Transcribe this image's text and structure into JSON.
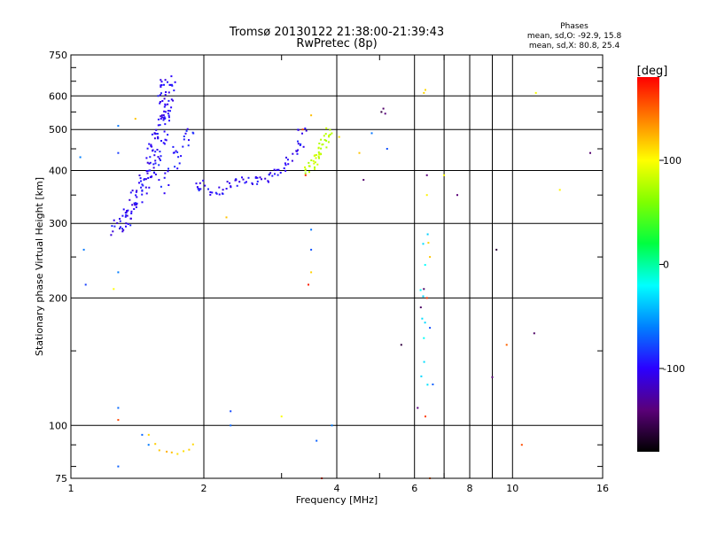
{
  "chart_data": {
    "type": "scatter",
    "title": "Tromsø 20130122 21:38:00-21:39:43",
    "subtitle": "RwPretec (8p)",
    "xlabel": "Frequency [MHz]",
    "ylabel": "Stationary phase Virtual Height [km]",
    "x_scale": "log",
    "y_scale": "log",
    "xlim": [
      1,
      16
    ],
    "ylim": [
      75,
      750
    ],
    "x_ticks": [
      1,
      2,
      4,
      6,
      8,
      10,
      16
    ],
    "x_tick_labels": [
      "1",
      "2",
      "4",
      "6",
      "8",
      "10",
      "16"
    ],
    "x_gridlines": [
      2,
      4,
      6,
      7,
      8,
      9,
      10
    ],
    "x_minor_ticks": [
      3,
      5,
      7,
      9
    ],
    "y_ticks": [
      75,
      100,
      200,
      300,
      400,
      500,
      600,
      750
    ],
    "y_tick_labels": [
      "75",
      "100",
      "200",
      "300",
      "400",
      "500",
      "600",
      "750"
    ],
    "y_gridlines": [
      100,
      200,
      300,
      400,
      500,
      600
    ],
    "y_minor_ticks": [
      80,
      90,
      150,
      250,
      350,
      450,
      550,
      650,
      700
    ],
    "grid": true,
    "stats": {
      "heading": "Phases",
      "line1": "mean, sd,O: -92.9, 15.8",
      "line2": "mean, sd,X:  80.8, 25.4"
    },
    "colorbar": {
      "label": "[deg]",
      "range": [
        -180,
        180
      ],
      "ticks": [
        100,
        0,
        -100
      ],
      "tick_labels": [
        "100",
        "0",
        "-100"
      ],
      "colormap": [
        "#000000",
        "#5a0078",
        "#2b00ff",
        "#0080ff",
        "#00ffff",
        "#00ff40",
        "#80ff00",
        "#ffff00",
        "#ff8000",
        "#ff0000"
      ]
    },
    "point_groups": [
      {
        "points": [
          [
            1.28,
            290
          ],
          [
            1.32,
            300
          ],
          [
            1.36,
            320
          ],
          [
            1.4,
            340
          ],
          [
            1.44,
            360
          ],
          [
            1.48,
            385
          ],
          [
            1.52,
            410
          ],
          [
            1.55,
            440
          ],
          [
            1.58,
            470
          ],
          [
            1.6,
            500
          ],
          [
            1.62,
            530
          ],
          [
            1.63,
            560
          ],
          [
            1.64,
            600
          ],
          [
            1.65,
            640
          ],
          [
            1.3,
            297
          ],
          [
            1.34,
            312
          ],
          [
            1.38,
            330
          ],
          [
            1.42,
            350
          ],
          [
            1.46,
            372
          ],
          [
            1.5,
            396
          ],
          [
            1.53,
            425
          ],
          [
            1.56,
            455
          ],
          [
            1.59,
            485
          ],
          [
            1.61,
            515
          ],
          [
            1.63,
            545
          ],
          [
            1.64,
            580
          ],
          [
            1.65,
            620
          ],
          [
            1.66,
            650
          ]
        ],
        "phase": -100,
        "jitter": [
          0.04,
          0.03
        ],
        "repeat": 6
      },
      {
        "points": [
          [
            1.55,
            400
          ],
          [
            1.6,
            380
          ],
          [
            1.65,
            360
          ],
          [
            1.7,
            400
          ],
          [
            1.75,
            440
          ],
          [
            1.8,
            470
          ],
          [
            1.85,
            500
          ],
          [
            1.62,
            420
          ],
          [
            1.68,
            450
          ],
          [
            1.72,
            430
          ],
          [
            1.78,
            480
          ]
        ],
        "phase": -95,
        "jitter": [
          0.03,
          0.04
        ],
        "repeat": 3
      },
      {
        "points": [
          [
            1.95,
            370
          ],
          [
            2.0,
            360
          ],
          [
            2.1,
            355
          ],
          [
            2.2,
            360
          ],
          [
            2.3,
            368
          ],
          [
            2.4,
            375
          ],
          [
            2.5,
            380
          ],
          [
            2.6,
            380
          ],
          [
            2.7,
            378
          ],
          [
            2.8,
            385
          ],
          [
            2.9,
            395
          ],
          [
            3.0,
            405
          ],
          [
            3.1,
            420
          ],
          [
            3.2,
            440
          ],
          [
            3.3,
            465
          ],
          [
            3.35,
            500
          ]
        ],
        "phase": -100,
        "jitter": [
          0.025,
          0.025
        ],
        "repeat": 5
      },
      {
        "points": [
          [
            3.4,
            400
          ],
          [
            3.5,
            415
          ],
          [
            3.6,
            430
          ],
          [
            3.7,
            450
          ],
          [
            3.8,
            470
          ],
          [
            3.85,
            490
          ],
          [
            3.55,
            425
          ],
          [
            3.65,
            440
          ],
          [
            3.75,
            460
          ]
        ],
        "phase": 80,
        "jitter": [
          0.02,
          0.03
        ],
        "repeat": 5
      },
      {
        "points": [
          [
            1.65,
            87
          ],
          [
            1.7,
            86
          ],
          [
            1.75,
            86
          ],
          [
            1.8,
            87
          ],
          [
            1.85,
            88
          ],
          [
            1.9,
            90
          ],
          [
            1.5,
            95
          ],
          [
            1.55,
            90
          ],
          [
            1.58,
            87
          ]
        ],
        "phase": 115,
        "jitter": [
          0.005,
          0.005
        ],
        "repeat": 1
      },
      {
        "points": [
          [
            6.2,
            130
          ],
          [
            6.3,
            140
          ],
          [
            6.3,
            160
          ],
          [
            6.25,
            180
          ],
          [
            6.3,
            200
          ],
          [
            6.35,
            240
          ],
          [
            6.4,
            280
          ],
          [
            6.3,
            270
          ],
          [
            6.2,
            210
          ],
          [
            6.35,
            175
          ],
          [
            6.4,
            125
          ]
        ],
        "phase": -30,
        "jitter": [
          0.004,
          0.01
        ],
        "repeat": 1
      },
      {
        "points": [
          [
            5.1,
            560
          ],
          [
            5.15,
            545
          ],
          [
            5.05,
            550
          ],
          [
            6.1,
            110
          ],
          [
            6.3,
            210
          ],
          [
            6.2,
            190
          ],
          [
            4.6,
            380
          ],
          [
            9.2,
            260
          ],
          [
            9.0,
            130
          ],
          [
            11.2,
            165
          ],
          [
            15.0,
            440
          ],
          [
            7.5,
            350
          ],
          [
            6.4,
            390
          ],
          [
            5.6,
            155
          ]
        ],
        "phase": -150,
        "jitter": [
          0,
          0
        ],
        "repeat": 1
      },
      {
        "points": [
          [
            6.3,
            610
          ],
          [
            6.35,
            620
          ],
          [
            6.4,
            350
          ],
          [
            6.45,
            270
          ],
          [
            6.5,
            250
          ],
          [
            7.0,
            390
          ],
          [
            12.8,
            360
          ],
          [
            11.3,
            610
          ],
          [
            4.05,
            480
          ],
          [
            4.5,
            440
          ],
          [
            3.5,
            540
          ],
          [
            1.4,
            530
          ],
          [
            1.25,
            210
          ],
          [
            2.25,
            310
          ],
          [
            3.0,
            105
          ],
          [
            3.5,
            230
          ]
        ],
        "phase": 110,
        "jitter": [
          0,
          0
        ],
        "repeat": 1
      },
      {
        "points": [
          [
            1.05,
            430
          ],
          [
            1.08,
            215
          ],
          [
            1.07,
            260
          ],
          [
            1.28,
            230
          ],
          [
            1.28,
            440
          ],
          [
            1.28,
            510
          ],
          [
            1.28,
            110
          ],
          [
            1.28,
            80
          ],
          [
            1.45,
            95
          ],
          [
            2.3,
            108
          ],
          [
            2.3,
            100
          ],
          [
            3.5,
            290
          ],
          [
            3.5,
            260
          ],
          [
            3.6,
            92
          ],
          [
            3.9,
            100
          ],
          [
            1.5,
            90
          ],
          [
            6.5,
            170
          ],
          [
            6.6,
            125
          ],
          [
            4.8,
            490
          ],
          [
            5.2,
            450
          ]
        ],
        "phase": -70,
        "jitter": [
          0,
          0
        ],
        "repeat": 1
      },
      {
        "points": [
          [
            10.5,
            90
          ],
          [
            6.35,
            105
          ],
          [
            6.4,
            200
          ],
          [
            3.45,
            215
          ],
          [
            1.28,
            103
          ],
          [
            9.7,
            155
          ],
          [
            3.7,
            75
          ],
          [
            6.5,
            75
          ],
          [
            3.35,
            500
          ],
          [
            3.4,
            390
          ]
        ],
        "phase": 160,
        "jitter": [
          0,
          0
        ],
        "repeat": 1
      }
    ]
  }
}
